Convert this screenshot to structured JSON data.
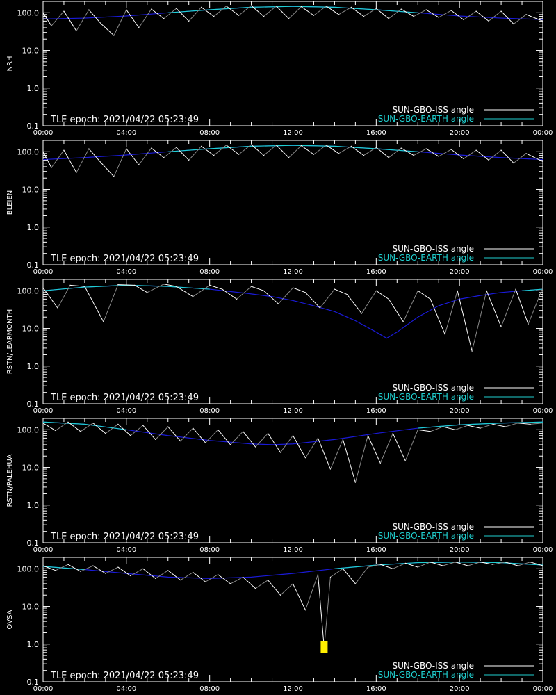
{
  "chart_data": [
    {
      "type": "line",
      "ylabel": "NRH",
      "yscale": "log",
      "ylim": [
        0.1,
        200
      ],
      "yticks": [
        "100.0",
        "10.0",
        "1.0",
        "0.1"
      ],
      "xticks": [
        "00:00",
        "04:00",
        "08:00",
        "12:00",
        "16:00",
        "20:00",
        "00:00"
      ],
      "annotation": "TLE epoch: 2021/04/22 05:23:49",
      "legend": {
        "placement": "bottom-right"
      },
      "series": [
        {
          "name": "SUN-GBO-ISS angle",
          "color": "#ffffff",
          "x": [
            0.0,
            0.4,
            1.0,
            1.6,
            2.2,
            2.8,
            3.4,
            4.0,
            4.6,
            5.2,
            5.8,
            6.4,
            7.0,
            7.6,
            8.2,
            8.8,
            9.4,
            10.0,
            10.6,
            11.2,
            11.8,
            12.4,
            13.0,
            13.6,
            14.2,
            14.8,
            15.4,
            16.0,
            16.6,
            17.2,
            17.8,
            18.4,
            19.0,
            19.6,
            20.2,
            20.8,
            21.4,
            22.0,
            22.6,
            23.2,
            24.0
          ],
          "y": [
            100,
            45,
            110,
            33,
            120,
            50,
            25,
            120,
            40,
            125,
            70,
            130,
            60,
            140,
            80,
            150,
            85,
            155,
            80,
            150,
            70,
            145,
            85,
            150,
            90,
            140,
            80,
            130,
            70,
            125,
            80,
            120,
            75,
            115,
            65,
            110,
            60,
            110,
            50,
            90,
            60
          ]
        },
        {
          "name": "SUN-GBO-EARTH angle",
          "color": "#20d0d0",
          "x": [
            0,
            2,
            4,
            6,
            8,
            10,
            12,
            14,
            16,
            18,
            20,
            22,
            24
          ],
          "y": [
            68,
            72,
            82,
            100,
            120,
            140,
            148,
            140,
            120,
            100,
            82,
            72,
            66
          ]
        }
      ]
    },
    {
      "type": "line",
      "ylabel": "BLEIEN",
      "yscale": "log",
      "ylim": [
        0.1,
        200
      ],
      "yticks": [
        "100.0",
        "10.0",
        "1.0",
        "0.1"
      ],
      "xticks": [
        "00:00",
        "04:00",
        "08:00",
        "12:00",
        "16:00",
        "20:00",
        "00:00"
      ],
      "annotation": "TLE epoch: 2021/04/22 05:23:49",
      "legend": {
        "placement": "bottom-right"
      },
      "series": [
        {
          "name": "SUN-GBO-ISS angle",
          "color": "#ffffff",
          "x": [
            0.0,
            0.4,
            1.0,
            1.6,
            2.2,
            2.8,
            3.4,
            4.0,
            4.6,
            5.2,
            5.8,
            6.4,
            7.0,
            7.6,
            8.2,
            8.8,
            9.4,
            10.0,
            10.6,
            11.2,
            11.8,
            12.4,
            13.0,
            13.6,
            14.2,
            14.8,
            15.4,
            16.0,
            16.6,
            17.2,
            17.8,
            18.4,
            19.0,
            19.6,
            20.2,
            20.8,
            21.4,
            22.0,
            22.6,
            23.2,
            24.0
          ],
          "y": [
            100,
            38,
            110,
            28,
            120,
            50,
            22,
            120,
            45,
            125,
            70,
            130,
            60,
            140,
            80,
            150,
            85,
            155,
            80,
            150,
            70,
            145,
            85,
            150,
            90,
            140,
            80,
            130,
            70,
            125,
            80,
            120,
            75,
            115,
            65,
            110,
            60,
            110,
            50,
            90,
            55
          ]
        },
        {
          "name": "SUN-GBO-EARTH angle",
          "color": "#20d0d0",
          "x": [
            0,
            2,
            4,
            6,
            8,
            10,
            12,
            14,
            16,
            18,
            20,
            22,
            24
          ],
          "y": [
            62,
            70,
            82,
            100,
            120,
            140,
            148,
            140,
            120,
            100,
            82,
            70,
            62
          ]
        }
      ]
    },
    {
      "type": "line",
      "ylabel": "RSTN/LEARMONTH",
      "yscale": "log",
      "ylim": [
        0.1,
        200
      ],
      "yticks": [
        "100.0",
        "10.0",
        "1.0",
        "0.1"
      ],
      "xticks": [
        "00:00",
        "04:00",
        "08:00",
        "12:00",
        "16:00",
        "20:00",
        "00:00"
      ],
      "annotation": "TLE epoch: 2021/04/22 05:23:49",
      "legend": {
        "placement": "bottom-right"
      },
      "series": [
        {
          "name": "SUN-GBO-ISS angle",
          "color": "#ffffff",
          "x": [
            0.0,
            0.7,
            1.3,
            2.0,
            2.9,
            3.6,
            4.4,
            5.0,
            5.8,
            6.4,
            7.2,
            8.0,
            8.6,
            9.3,
            10.0,
            10.6,
            11.3,
            12.0,
            12.6,
            13.3,
            14.0,
            14.6,
            15.3,
            16.0,
            16.6,
            17.3,
            18.0,
            18.6,
            19.3,
            19.9,
            20.6,
            21.3,
            22.0,
            22.7,
            23.3,
            24.0
          ],
          "y": [
            120,
            35,
            140,
            130,
            15,
            145,
            140,
            90,
            150,
            130,
            70,
            140,
            110,
            60,
            130,
            100,
            45,
            120,
            90,
            35,
            110,
            80,
            25,
            100,
            60,
            15,
            100,
            60,
            7,
            100,
            2.5,
            100,
            11,
            110,
            13,
            120
          ]
        },
        {
          "name": "SUN-GBO-EARTH angle",
          "color": "#20d0d0",
          "x": [
            0,
            2,
            4,
            6,
            8,
            9.8,
            11,
            12,
            13,
            14,
            15,
            16,
            16.5,
            17,
            18,
            19,
            20,
            21,
            22,
            23,
            24
          ],
          "y": [
            100,
            125,
            140,
            130,
            110,
            85,
            70,
            55,
            40,
            28,
            16,
            8,
            5.5,
            8,
            20,
            40,
            60,
            75,
            90,
            100,
            110
          ]
        }
      ]
    },
    {
      "type": "line",
      "ylabel": "RSTN/PALEHUA",
      "yscale": "log",
      "ylim": [
        0.1,
        200
      ],
      "yticks": [
        "100.0",
        "10.0",
        "1.0",
        "0.1"
      ],
      "xticks": [
        "00:00",
        "04:00",
        "08:00",
        "12:00",
        "16:00",
        "20:00",
        "00:00"
      ],
      "annotation": "TLE epoch: 2021/04/22 05:23:49",
      "legend": {
        "placement": "bottom-right"
      },
      "series": [
        {
          "name": "SUN-GBO-ISS angle",
          "color": "#ffffff",
          "x": [
            0.0,
            0.6,
            1.2,
            1.8,
            2.4,
            3.0,
            3.6,
            4.2,
            4.8,
            5.4,
            6.0,
            6.6,
            7.2,
            7.8,
            8.4,
            9.0,
            9.6,
            10.2,
            10.8,
            11.4,
            12.0,
            12.6,
            13.2,
            13.8,
            14.4,
            15.0,
            15.6,
            16.2,
            16.8,
            17.4,
            18.0,
            18.6,
            19.2,
            19.8,
            20.4,
            21.0,
            21.6,
            22.2,
            22.8,
            23.4,
            24.0
          ],
          "y": [
            150,
            95,
            160,
            90,
            150,
            80,
            140,
            70,
            130,
            55,
            120,
            50,
            110,
            45,
            100,
            40,
            90,
            35,
            80,
            25,
            70,
            18,
            60,
            9,
            55,
            4,
            70,
            13,
            80,
            15,
            100,
            90,
            120,
            100,
            130,
            110,
            140,
            120,
            150,
            140,
            150
          ]
        },
        {
          "name": "SUN-GBO-EARTH angle",
          "color": "#20d0d0",
          "x": [
            0,
            2,
            4,
            6,
            8,
            10,
            11,
            12,
            14,
            16,
            18,
            20,
            22,
            24
          ],
          "y": [
            160,
            140,
            100,
            70,
            52,
            42,
            40,
            42,
            55,
            80,
            110,
            135,
            150,
            160
          ]
        }
      ]
    },
    {
      "type": "line",
      "ylabel": "OVSA",
      "yscale": "log",
      "ylim": [
        0.1,
        200
      ],
      "yticks": [
        "100.0",
        "10.0",
        "1.0",
        "0.1"
      ],
      "xticks": [
        "00:00",
        "04:00",
        "08:00",
        "12:00",
        "16:00",
        "20:00",
        "00:00"
      ],
      "annotation": "TLE epoch: 2021/04/22 05:23:49",
      "legend": {
        "placement": "bottom-right"
      },
      "series": [
        {
          "name": "SUN-GBO-ISS angle",
          "color": "#ffffff",
          "x": [
            0.0,
            0.6,
            1.2,
            1.8,
            2.4,
            3.0,
            3.6,
            4.2,
            4.8,
            5.4,
            6.0,
            6.6,
            7.2,
            7.8,
            8.4,
            9.0,
            9.6,
            10.2,
            10.8,
            11.4,
            12.0,
            12.6,
            13.2,
            13.5,
            13.8,
            14.4,
            15.0,
            15.6,
            16.2,
            16.8,
            17.4,
            18.0,
            18.6,
            19.2,
            19.8,
            20.4,
            21.0,
            21.6,
            22.2,
            22.8,
            23.4,
            24.0
          ],
          "y": [
            120,
            90,
            130,
            85,
            120,
            75,
            110,
            65,
            100,
            55,
            90,
            50,
            80,
            45,
            70,
            40,
            60,
            30,
            50,
            20,
            40,
            8,
            70,
            0.8,
            60,
            100,
            40,
            110,
            130,
            100,
            140,
            110,
            150,
            120,
            150,
            120,
            150,
            130,
            150,
            120,
            150,
            120
          ]
        },
        {
          "name": "SUN-GBO-EARTH angle",
          "color": "#20d0d0",
          "x": [
            0,
            2,
            4,
            6,
            8,
            10,
            12,
            14,
            16,
            18,
            20,
            22,
            24
          ],
          "y": [
            115,
            95,
            75,
            60,
            55,
            60,
            75,
            100,
            125,
            145,
            150,
            145,
            125
          ]
        }
      ]
    }
  ]
}
